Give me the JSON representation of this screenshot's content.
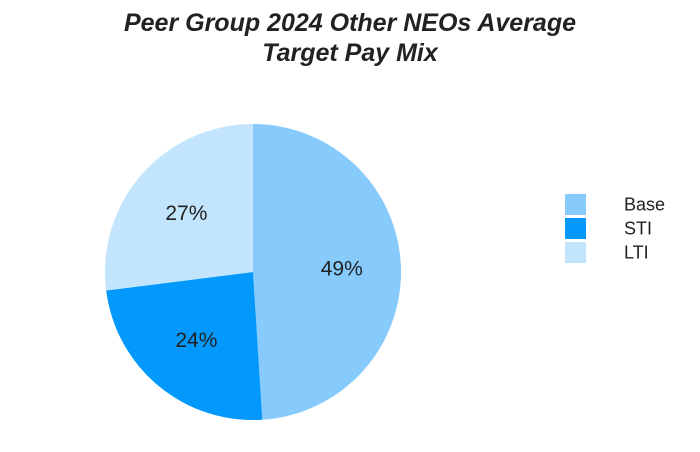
{
  "chart_data": {
    "type": "pie",
    "title_line1": "Peer Group 2024 Other NEOs Average",
    "title_line2": "Target Pay Mix",
    "slices": [
      {
        "label": "Base",
        "value": 49,
        "display": "49%",
        "color": "#87CAFC"
      },
      {
        "label": "STI",
        "value": 24,
        "display": "24%",
        "color": "#0399FC"
      },
      {
        "label": "LTI",
        "value": 27,
        "display": "27%",
        "color": "#C2E5FD"
      }
    ],
    "legend": {
      "placement": "right",
      "entries": [
        "Base",
        "STI",
        "LTI"
      ]
    }
  }
}
